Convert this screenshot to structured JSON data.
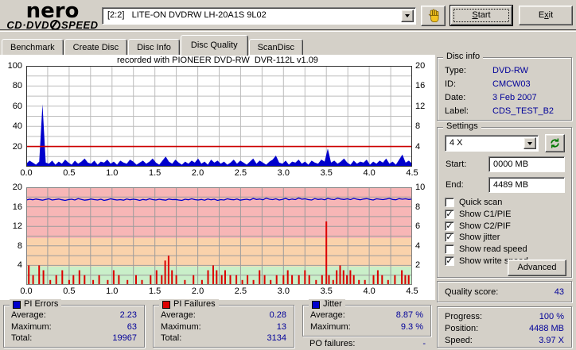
{
  "window": {
    "logo_top": "nero",
    "logo_bottom_left": "CD·DVD",
    "logo_bottom_right": "SPEED",
    "drive_select": "[2:2]   LITE-ON DVDRW LH-20A1S 9L02",
    "start_button": {
      "u": "S",
      "rest": "tart"
    },
    "exit_button": {
      "pre": "E",
      "u": "x",
      "rest": "it"
    }
  },
  "tabs": [
    {
      "label": "Benchmark",
      "active": false
    },
    {
      "label": "Create Disc",
      "active": false
    },
    {
      "label": "Disc Info",
      "active": false
    },
    {
      "label": "Disc Quality",
      "active": true
    },
    {
      "label": "ScanDisc",
      "active": false
    }
  ],
  "chart_data": [
    {
      "type": "area",
      "name": "pi-errors",
      "title": "recorded with PIONEER DVD-RW  DVR-112L v1.09",
      "xlabel": "",
      "ylabel": "PI Errors",
      "x_min": 0,
      "x_max": 4.5,
      "x_grid_step": 0.25,
      "x_ticks": [
        "0.0",
        "0.5",
        "1.0",
        "1.5",
        "2.0",
        "2.5",
        "3.0",
        "3.5",
        "4.0",
        "4.5"
      ],
      "y_left": {
        "min": 0,
        "max": 100,
        "ticks": [
          100,
          80,
          60,
          40,
          20
        ],
        "grid_step": 10
      },
      "y_right": {
        "min": 0,
        "max": 20,
        "ticks": [
          20,
          16,
          12,
          8,
          4
        ]
      },
      "threshold": {
        "value": 20,
        "color": "#cc0000"
      },
      "series_color": "#0000cc",
      "grid_color": "#bcbcbc",
      "values": [
        3,
        6,
        4,
        2,
        5,
        62,
        4,
        3,
        6,
        2,
        5,
        3,
        7,
        4,
        2,
        6,
        3,
        5,
        8,
        4,
        3,
        6,
        2,
        5,
        4,
        7,
        3,
        5,
        2,
        6,
        4,
        3,
        7,
        5,
        2,
        4,
        6,
        3,
        5,
        8,
        4,
        2,
        6,
        10,
        5,
        3,
        7,
        4,
        2,
        5,
        3,
        6,
        4,
        8,
        3,
        5,
        2,
        7,
        4,
        6,
        3,
        5,
        2,
        4,
        7,
        3,
        6,
        4,
        2,
        5,
        8,
        3,
        6,
        4,
        2,
        5,
        7,
        11,
        4,
        3,
        6,
        2,
        5,
        4,
        7,
        3,
        5,
        2,
        6,
        4,
        3,
        7,
        5,
        18,
        4,
        6,
        3,
        5,
        8,
        4,
        2,
        6,
        3,
        5,
        4,
        7,
        2,
        5,
        3,
        6,
        4,
        8,
        3,
        5,
        2,
        7,
        12,
        4,
        6,
        3
      ]
    },
    {
      "type": "mixed",
      "name": "pi-failures-jitter",
      "x_min": 0,
      "x_max": 4.5,
      "x_grid_step": 0.25,
      "x_ticks": [
        "0.0",
        "0.5",
        "1.0",
        "1.5",
        "2.0",
        "2.5",
        "3.0",
        "3.5",
        "4.0",
        "4.5"
      ],
      "y_left": {
        "min": 0,
        "max": 20,
        "ticks": [
          20,
          16,
          12,
          8,
          4
        ],
        "grid_step": 2
      },
      "y_right": {
        "min": 0,
        "max": 10,
        "ticks": [
          10,
          8,
          6,
          4,
          2
        ]
      },
      "grid_color": "#9c9c9c",
      "bands": [
        {
          "from": 0,
          "to": 3.8,
          "color": "#c9efc9"
        },
        {
          "from": 3.8,
          "to": 9.6,
          "color": "#fad2ab"
        },
        {
          "from": 9.6,
          "to": 20,
          "color": "#f7b6b6"
        }
      ],
      "bars": {
        "name": "PI Failures",
        "color": "#dd0000",
        "scale": "left",
        "points": [
          [
            0.03,
            4
          ],
          [
            0.08,
            2
          ],
          [
            0.15,
            4
          ],
          [
            0.2,
            3
          ],
          [
            0.28,
            1
          ],
          [
            0.35,
            2
          ],
          [
            0.42,
            3
          ],
          [
            0.5,
            1
          ],
          [
            0.55,
            2
          ],
          [
            0.62,
            3
          ],
          [
            0.68,
            2
          ],
          [
            0.78,
            1
          ],
          [
            0.85,
            2
          ],
          [
            0.95,
            1
          ],
          [
            1.02,
            3
          ],
          [
            1.08,
            2
          ],
          [
            1.18,
            1
          ],
          [
            1.28,
            2
          ],
          [
            1.35,
            1
          ],
          [
            1.45,
            2
          ],
          [
            1.52,
            3
          ],
          [
            1.58,
            2
          ],
          [
            1.62,
            5
          ],
          [
            1.66,
            6
          ],
          [
            1.7,
            3
          ],
          [
            1.75,
            2
          ],
          [
            1.85,
            1
          ],
          [
            1.95,
            2
          ],
          [
            2.05,
            1
          ],
          [
            2.12,
            3
          ],
          [
            2.18,
            4
          ],
          [
            2.22,
            3
          ],
          [
            2.28,
            2
          ],
          [
            2.32,
            3
          ],
          [
            2.38,
            2
          ],
          [
            2.45,
            2
          ],
          [
            2.52,
            1
          ],
          [
            2.58,
            2
          ],
          [
            2.65,
            1
          ],
          [
            2.72,
            3
          ],
          [
            2.78,
            2
          ],
          [
            2.85,
            1
          ],
          [
            2.92,
            2
          ],
          [
            3.0,
            2
          ],
          [
            3.05,
            3
          ],
          [
            3.1,
            2
          ],
          [
            3.18,
            2
          ],
          [
            3.25,
            3
          ],
          [
            3.3,
            2
          ],
          [
            3.38,
            1
          ],
          [
            3.45,
            2
          ],
          [
            3.5,
            13
          ],
          [
            3.53,
            2
          ],
          [
            3.58,
            1
          ],
          [
            3.62,
            3
          ],
          [
            3.66,
            4
          ],
          [
            3.7,
            3
          ],
          [
            3.74,
            2
          ],
          [
            3.78,
            3
          ],
          [
            3.82,
            2
          ],
          [
            3.88,
            1
          ],
          [
            3.95,
            1
          ],
          [
            4.05,
            2
          ],
          [
            4.1,
            3
          ],
          [
            4.15,
            2
          ],
          [
            4.22,
            1
          ],
          [
            4.3,
            2
          ],
          [
            4.38,
            3
          ],
          [
            4.42,
            2
          ],
          [
            4.46,
            2
          ]
        ]
      },
      "line": {
        "name": "Jitter",
        "color": "#0000cc",
        "scale": "right",
        "values": [
          8.7,
          8.78,
          8.72,
          8.8,
          8.74,
          8.68,
          8.76,
          8.82,
          8.7,
          8.75,
          8.8,
          8.72,
          8.66,
          8.74,
          8.78,
          8.7,
          8.84,
          8.76,
          8.68,
          8.72,
          8.8,
          8.74,
          8.7,
          8.78,
          8.66,
          8.72,
          8.82,
          8.76,
          8.7,
          8.74,
          8.68,
          8.8,
          8.72,
          8.78,
          8.74,
          8.66,
          8.76,
          8.7,
          8.82,
          8.74,
          8.7,
          8.78,
          8.72,
          8.68,
          8.8,
          8.74,
          8.76,
          8.7,
          8.66,
          8.78,
          8.72,
          8.82,
          8.74,
          8.7,
          8.76,
          8.68,
          8.8,
          8.72,
          8.78,
          8.66,
          8.74,
          8.7,
          8.82,
          8.76,
          8.72,
          8.8,
          8.68,
          8.74,
          8.78,
          8.7,
          8.85,
          8.76,
          8.8,
          8.72,
          8.88,
          8.78,
          8.74,
          8.82,
          8.7,
          8.76,
          8.86,
          8.72,
          8.8,
          8.74,
          8.9,
          8.78,
          8.82,
          8.74,
          8.7,
          8.84,
          8.76,
          8.8,
          8.72,
          8.86,
          8.78,
          8.74,
          8.88,
          8.8,
          8.76,
          8.82,
          8.74,
          8.86,
          8.78,
          8.72,
          8.8,
          8.84,
          8.76,
          8.7,
          8.82,
          8.78,
          8.74,
          8.8,
          8.86,
          8.76,
          8.72,
          8.84,
          8.78,
          8.82,
          8.76,
          8.8
        ]
      }
    }
  ],
  "disc_info": {
    "title": "Disc info",
    "rows": [
      {
        "label": "Type:",
        "value": "DVD-RW"
      },
      {
        "label": "ID:",
        "value": "CMCW03"
      },
      {
        "label": "Date:",
        "value": "3 Feb 2007"
      },
      {
        "label": "Label:",
        "value": "CDS_TEST_B2"
      }
    ]
  },
  "settings": {
    "title": "Settings",
    "speed_value": "4 X",
    "start_label": "Start:",
    "start_value": "0000 MB",
    "end_label": "End:",
    "end_value": "4489 MB",
    "checkboxes": [
      {
        "label": "Quick scan",
        "checked": false
      },
      {
        "label": "Show C1/PIE",
        "checked": true
      },
      {
        "label": "Show C2/PIF",
        "checked": true
      },
      {
        "label": "Show jitter",
        "checked": true
      },
      {
        "label": "Show read speed",
        "checked": false
      },
      {
        "label": "Show write speed",
        "checked": true
      }
    ],
    "advanced_button": "Advanced"
  },
  "quality_score": {
    "label": "Quality score:",
    "value": "43"
  },
  "progress_panel": {
    "rows": [
      {
        "label": "Progress:",
        "value": "100 %"
      },
      {
        "label": "Position:",
        "value": "4488 MB"
      },
      {
        "label": "Speed:",
        "value": "3.97 X"
      }
    ]
  },
  "stats_panels": [
    {
      "title": "PI Errors",
      "swatch": "#0000cc",
      "rows": [
        [
          "Average:",
          "2.23"
        ],
        [
          "Maximum:",
          "63"
        ],
        [
          "Total:",
          "19967"
        ]
      ]
    },
    {
      "title": "PI Failures",
      "swatch": "#dd0000",
      "rows": [
        [
          "Average:",
          "0.28"
        ],
        [
          "Maximum:",
          "13"
        ],
        [
          "Total:",
          "3134"
        ]
      ]
    },
    {
      "title": "Jitter",
      "swatch": "#0000cc",
      "rows": [
        [
          "Average:",
          "8.87 %"
        ],
        [
          "Maximum:",
          "9.3 %"
        ]
      ]
    }
  ],
  "po_failures": {
    "label": "PO failures:",
    "value": "-"
  }
}
